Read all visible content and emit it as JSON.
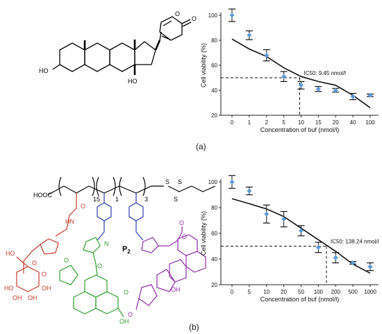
{
  "panel_labels": [
    "(a)",
    "(b)"
  ],
  "molecule_a": {
    "labels": {
      "ho_left": "HO",
      "ho_bottom": "HO",
      "carbonyl_o": "O",
      "ring_o": "O"
    }
  },
  "molecule_b": {
    "name": "P",
    "name_sub": "2",
    "backbone": {
      "cooh": "HOOC",
      "n1": "15",
      "n2": "1",
      "n3": "3",
      "s1": "S",
      "s2": "S",
      "s3": "S"
    },
    "sugar": {
      "ho1": "HO",
      "ho2": "HO",
      "oh1": "OH",
      "oh2": "OH",
      "oh3": "OH",
      "o1": "O",
      "o2": "O",
      "nh": "HN",
      "carbonyl_o": "O"
    },
    "triazole": {
      "n": "N"
    },
    "dye": {
      "o1": "O",
      "o2": "O",
      "o3": "O",
      "oh": "OH"
    },
    "steroid": {
      "o1": "O",
      "o2": "O",
      "o3": "O",
      "oh": "OH"
    }
  },
  "chart_data": [
    {
      "type": "scatter",
      "title": "",
      "xlabel": "Concentration of buf (nmol/l)",
      "ylabel": "Cell viability (%)",
      "x_scale": "log",
      "x": [
        0,
        1,
        2,
        5,
        10,
        15,
        20,
        40,
        100
      ],
      "xticks": [
        "0",
        "1",
        "2",
        "5",
        "10",
        "15",
        "20",
        "40",
        "100"
      ],
      "y": [
        100,
        84,
        68,
        51,
        44,
        41,
        40,
        35,
        36
      ],
      "yerr": [
        5,
        3.5,
        4.5,
        4,
        3,
        2,
        1.5,
        2.5,
        1
      ],
      "ylim": [
        20,
        100
      ],
      "yticks": [
        20,
        40,
        60,
        80,
        100
      ],
      "fit": {
        "x": [
          0,
          1,
          2,
          5,
          10,
          15,
          20,
          40,
          100
        ],
        "y": [
          81,
          73,
          67,
          58,
          51,
          47,
          44,
          36,
          26
        ]
      },
      "ic50": {
        "label": "IC50: 9.45 nmol/l",
        "x": 9.45,
        "y": 50
      },
      "marker_color": "#5b9bd5",
      "grid": false
    },
    {
      "type": "scatter",
      "title": "",
      "xlabel": "Concentration of buf (nmol/l)",
      "ylabel": "Cell viability (%)",
      "x_scale": "log",
      "x": [
        0,
        5,
        10,
        20,
        50,
        100,
        200,
        500,
        1000
      ],
      "xticks": [
        "0",
        "5",
        "10",
        "20",
        "50",
        "100",
        "200",
        "500",
        "1000"
      ],
      "y": [
        100,
        93,
        75,
        71,
        62,
        49,
        41,
        37,
        34
      ],
      "yerr": [
        5,
        3,
        7,
        6,
        4,
        4,
        4,
        1,
        3
      ],
      "ylim": [
        20,
        100
      ],
      "yticks": [
        20,
        40,
        60,
        80,
        100
      ],
      "fit": {
        "x": [
          0,
          5,
          10,
          20,
          50,
          100,
          200,
          500,
          1000
        ],
        "y": [
          87,
          83,
          79,
          73,
          64,
          55,
          46,
          36,
          29
        ]
      },
      "ic50": {
        "label": "IC50: 138.24 nmol/l",
        "x": 138.24,
        "y": 50
      },
      "marker_color": "#5b9bd5",
      "grid": false
    }
  ]
}
